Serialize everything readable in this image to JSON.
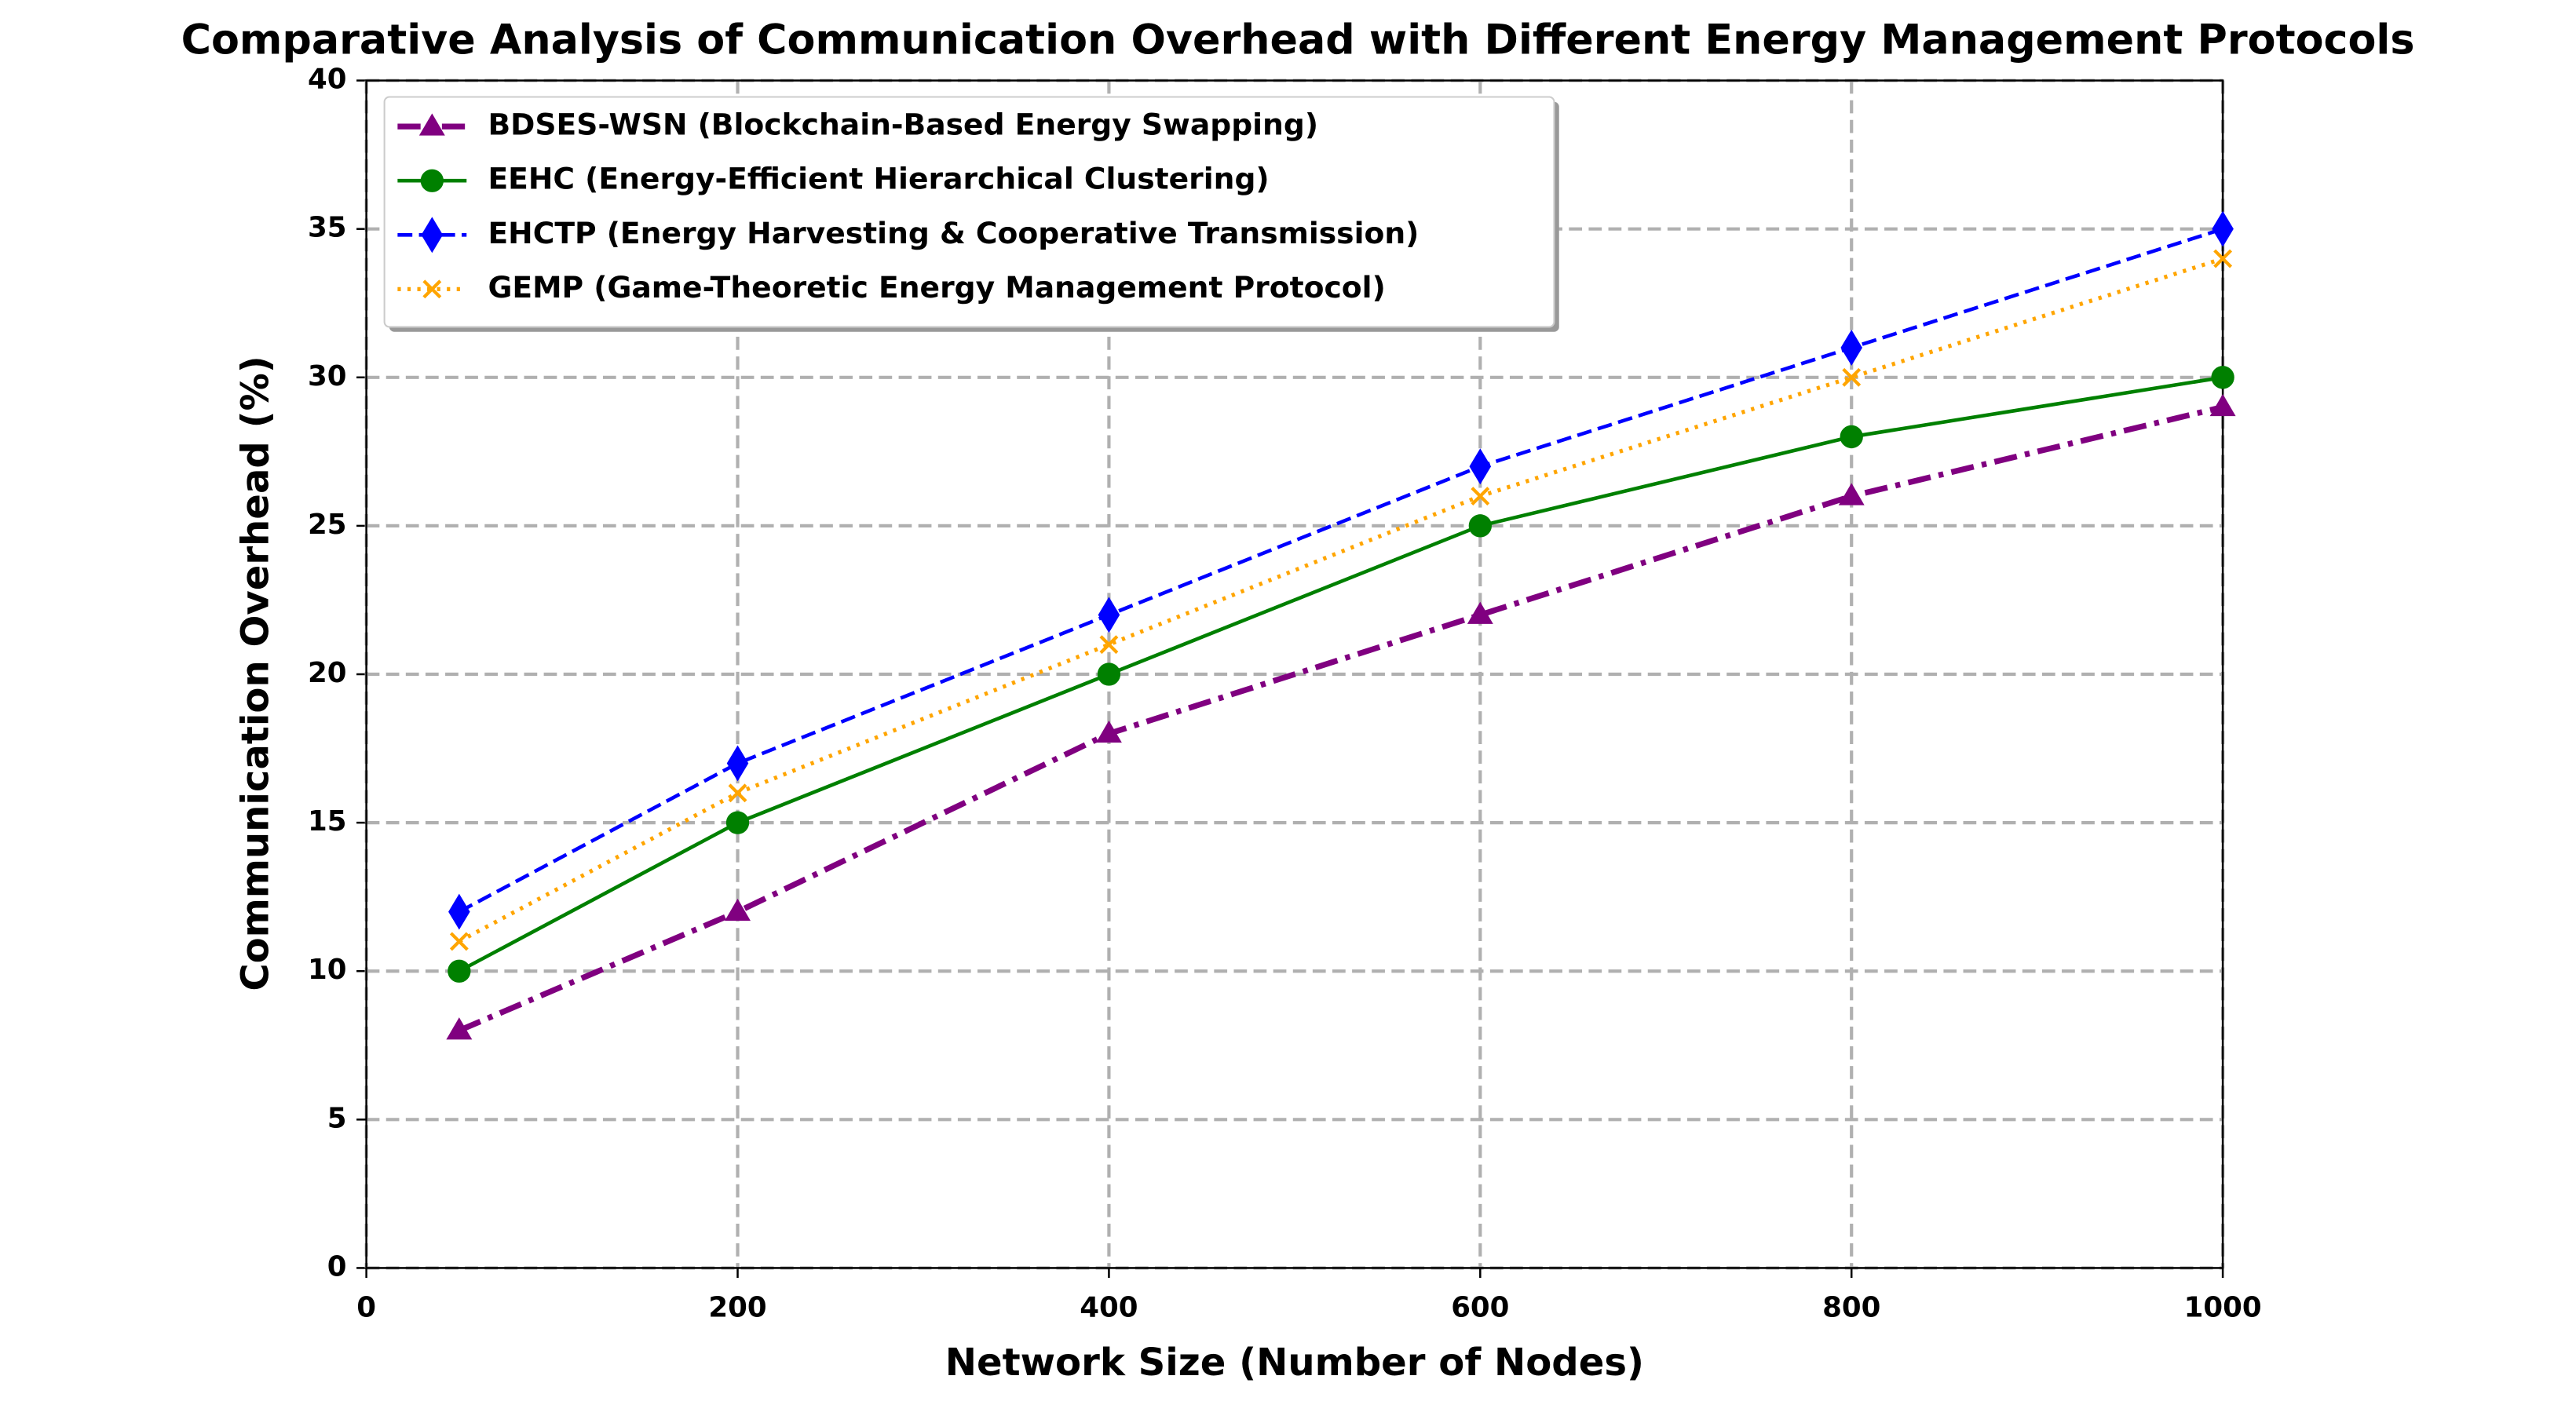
{
  "chart_data": {
    "type": "line",
    "title": "Comparative Analysis of Communication Overhead with Different Energy Management Protocols",
    "x_label": "Network Size (Number of Nodes)",
    "y_label": "Communication Overhead (%)",
    "x": [
      50,
      200,
      400,
      600,
      800,
      1000
    ],
    "series": [
      {
        "name": "BDSES-WSN (Blockchain-Based Energy Swapping)",
        "color": "#800080",
        "values": [
          8,
          12,
          18,
          22,
          26,
          29
        ]
      },
      {
        "name": "EEHC (Energy-Efficient Hierarchical Clustering)",
        "color": "#008000",
        "values": [
          10,
          15,
          20,
          25,
          28,
          30
        ]
      },
      {
        "name": "EHCTP (Energy Harvesting & Cooperative Transmission)",
        "color": "#0000ff",
        "values": [
          12,
          17,
          22,
          27,
          31,
          35
        ]
      },
      {
        "name": "GEMP (Game-Theoretic Energy Management Protocol)",
        "color": "#ffa500",
        "values": [
          11,
          16,
          21,
          26,
          30,
          34
        ]
      }
    ],
    "xlim": [
      0,
      1000
    ],
    "xticks": [
      0,
      200,
      400,
      600,
      800,
      1000
    ],
    "ylim": [
      0,
      40
    ],
    "yticks": [
      0,
      5,
      10,
      15,
      20,
      25,
      30,
      35,
      40
    ],
    "grid": true,
    "legend": "upper left"
  }
}
